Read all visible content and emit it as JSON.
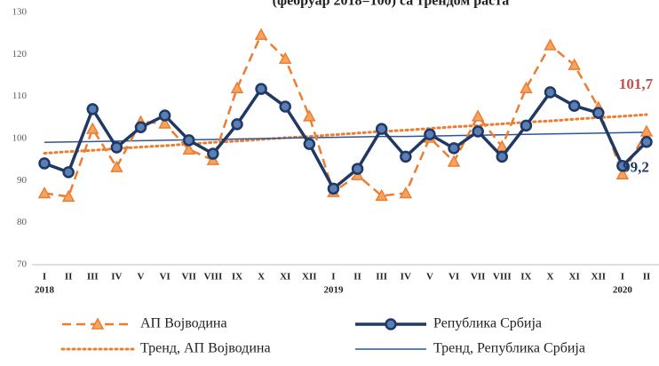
{
  "chart_data": {
    "type": "line",
    "title": "(фебруар 2018=100) са трендом раста",
    "categories": [
      "I",
      "II",
      "III",
      "IV",
      "V",
      "VI",
      "VII",
      "VIII",
      "IX",
      "X",
      "XI",
      "XII",
      "I",
      "II",
      "III",
      "IV",
      "V",
      "VI",
      "VII",
      "VIII",
      "IX",
      "X",
      "XI",
      "XII",
      "I",
      "II"
    ],
    "category_groups": [
      {
        "label": "2018",
        "start": 0
      },
      {
        "label": "2019",
        "start": 12
      },
      {
        "label": "2020",
        "start": 24
      }
    ],
    "series": [
      {
        "name": "АП Војводина",
        "color": "#ed7d31",
        "style": "dashed",
        "marker": "triangle",
        "values": [
          87,
          86.2,
          102.3,
          93.2,
          104,
          103.6,
          97.4,
          94.9,
          112,
          124.7,
          119,
          105.3,
          87.3,
          91.3,
          86.4,
          87,
          100.2,
          94.5,
          105.3,
          98.1,
          112,
          122.2,
          117.5,
          107.4,
          91.5,
          101.7
        ]
      },
      {
        "name": "Република Србија",
        "color": "#1f3864",
        "style": "solid",
        "marker": "circle",
        "values": [
          94.1,
          92,
          107,
          97.9,
          102.7,
          105.5,
          99.6,
          96.4,
          103.4,
          111.8,
          107.6,
          98.7,
          88.1,
          92.8,
          102.3,
          95.7,
          101,
          97.7,
          101.7,
          95.7,
          103.1,
          111,
          107.8,
          106.1,
          93.5,
          99.2
        ]
      },
      {
        "name": "Тренд, АП Војводина",
        "color": "#ed7d31",
        "style": "dotted",
        "marker": "none",
        "values": [
          96.5,
          96.9,
          97.2,
          97.6,
          98.0,
          98.3,
          98.7,
          99.1,
          99.4,
          99.8,
          100.2,
          100.5,
          100.9,
          101.3,
          101.7,
          102.0,
          102.4,
          102.8,
          103.1,
          103.5,
          103.9,
          104.2,
          104.6,
          105.0,
          105.3,
          105.7
        ]
      },
      {
        "name": "Тренд, Република Србија",
        "color": "#2f5597",
        "style": "thin",
        "marker": "none",
        "values": [
          99.1,
          99.2,
          99.3,
          99.4,
          99.5,
          99.6,
          99.7,
          99.8,
          99.9,
          100.0,
          100.1,
          100.2,
          100.3,
          100.4,
          100.5,
          100.5,
          100.6,
          100.7,
          100.8,
          100.9,
          101.0,
          101.1,
          101.2,
          101.3,
          101.4,
          101.5
        ]
      }
    ],
    "annotations": [
      {
        "text": "101,7",
        "series": 0,
        "index": 25,
        "color": "#c0504d"
      },
      {
        "text": "99,2",
        "series": 1,
        "index": 25,
        "color": "#1f3864"
      }
    ],
    "ylim": [
      70,
      130
    ],
    "yticks": [
      70,
      80,
      90,
      100,
      110,
      120,
      130
    ],
    "grid": false
  }
}
